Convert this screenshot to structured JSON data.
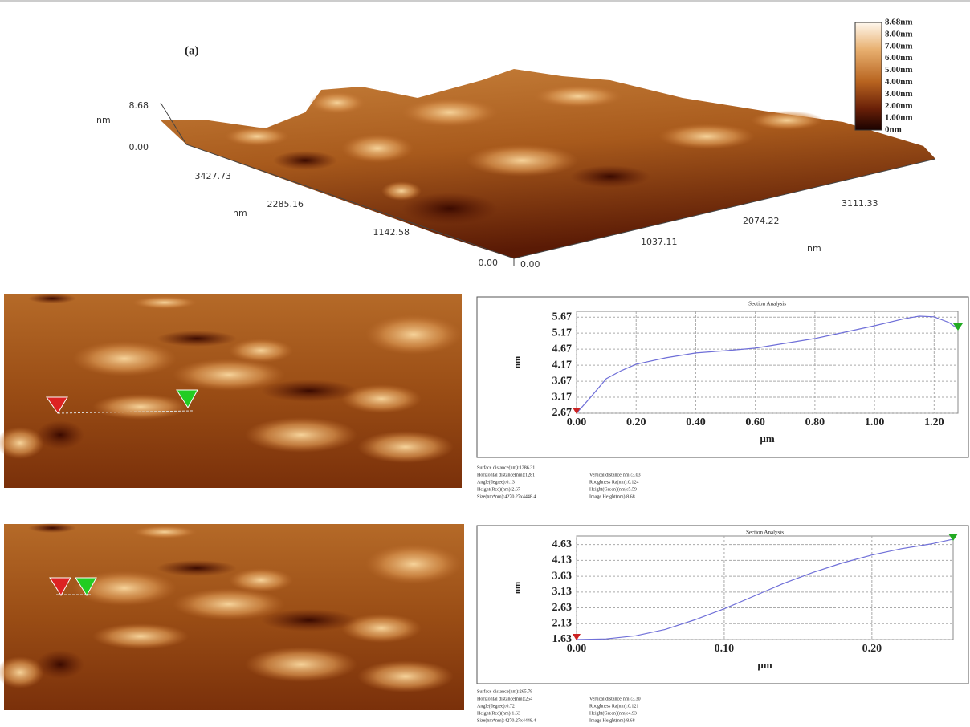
{
  "panel_3d": {
    "label": "(a)",
    "z_axis": {
      "top": "8.68",
      "unit": "nm",
      "bottom": "0.00"
    },
    "y_axis": {
      "ticks": [
        "3427.73",
        "2285.16",
        "1142.58",
        "0.00"
      ],
      "unit": "nm"
    },
    "x_axis": {
      "ticks": [
        "0.00",
        "1037.11",
        "2074.22",
        "3111.33"
      ],
      "unit": "nm"
    },
    "colorbar": [
      "8.68nm",
      "8.00nm",
      "7.00nm",
      "6.00nm",
      "5.00nm",
      "4.00nm",
      "3.00nm",
      "2.00nm",
      "1.00nm",
      "0nm"
    ]
  },
  "chart_data": [
    {
      "type": "line",
      "title": "Section Analysis",
      "xlabel": "µm",
      "ylabel": "nm",
      "color": "#6f6fd8",
      "grid": true,
      "x": [
        0,
        0.05,
        0.1,
        0.15,
        0.2,
        0.3,
        0.4,
        0.5,
        0.6,
        0.7,
        0.8,
        0.9,
        1.0,
        1.1,
        1.15,
        1.2,
        1.25,
        1.28
      ],
      "values": [
        2.67,
        3.2,
        3.75,
        4.0,
        4.2,
        4.4,
        4.55,
        4.62,
        4.7,
        4.85,
        5.0,
        5.2,
        5.4,
        5.62,
        5.7,
        5.68,
        5.5,
        5.3
      ],
      "xlim": [
        0,
        1.28
      ],
      "ylim": [
        2.67,
        5.85
      ],
      "xticks": [
        {
          "value": 0,
          "label": "0.00"
        },
        {
          "value": 0.2,
          "label": "0.20"
        },
        {
          "value": 0.4,
          "label": "0.40"
        },
        {
          "value": 0.6,
          "label": "0.60"
        },
        {
          "value": 0.8,
          "label": "0.80"
        },
        {
          "value": 1.0,
          "label": "1.00"
        },
        {
          "value": 1.2,
          "label": "1.20"
        }
      ],
      "yticks": [
        2.67,
        3.17,
        3.67,
        4.17,
        4.67,
        5.17,
        5.67
      ]
    },
    {
      "type": "line",
      "title": "Section Analysis",
      "xlabel": "µm",
      "ylabel": "nm",
      "color": "#6f6fd8",
      "grid": true,
      "x": [
        0,
        0.02,
        0.04,
        0.06,
        0.08,
        0.1,
        0.12,
        0.14,
        0.16,
        0.18,
        0.2,
        0.22,
        0.24,
        0.255
      ],
      "values": [
        1.63,
        1.65,
        1.75,
        1.95,
        2.25,
        2.6,
        3.0,
        3.4,
        3.75,
        4.05,
        4.3,
        4.5,
        4.65,
        4.8
      ],
      "xlim": [
        0,
        0.255
      ],
      "ylim": [
        1.63,
        4.9
      ],
      "xticks": [
        {
          "value": 0,
          "label": "0.00"
        },
        {
          "value": 0.1,
          "label": "0.10"
        },
        {
          "value": 0.2,
          "label": "0.20"
        }
      ],
      "yticks": [
        1.63,
        2.13,
        2.63,
        3.13,
        3.63,
        4.13,
        4.63
      ]
    }
  ],
  "section_info": [
    [
      [
        "Surface distance(nm):1286.31"
      ],
      [
        "Horizontal distance(nm):1281",
        "Vertical distance(nm):3.03"
      ],
      [
        "Angle(degree):0.13",
        "Roughness Ra(nm):0.124"
      ],
      [
        "Height(Red)(nm):2.67",
        "Height(Green)(nm):5.59"
      ],
      [
        "Size(nm*nm):4270.27x4448.4",
        "Image Height(nm):8.68"
      ]
    ],
    [
      [
        "Surface distance(nm):265.79"
      ],
      [
        "Horizontal distance(nm):254",
        "Vertical distance(nm):3.30"
      ],
      [
        "Angle(degree):0.72",
        "Roughness Ra(nm):0.121"
      ],
      [
        "Height(Red)(nm):1.63",
        "Height(Green)(nm):4.93"
      ],
      [
        "Size(nm*nm):4270.27x4448.4",
        "Image Height(nm):8.68"
      ]
    ]
  ]
}
